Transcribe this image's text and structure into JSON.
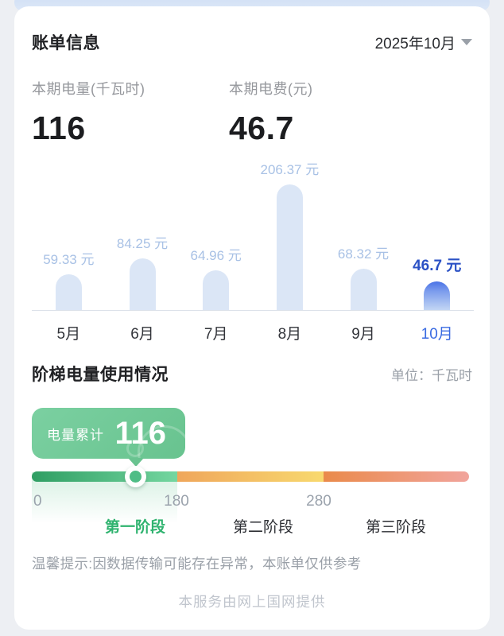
{
  "bill": {
    "title": "账单信息",
    "period": "2025年10月",
    "stats": [
      {
        "label": "本期电量(千瓦时)",
        "value": "116"
      },
      {
        "label": "本期电费(元)",
        "value": "46.7"
      }
    ]
  },
  "chart_data": {
    "type": "bar",
    "categories": [
      "5月",
      "6月",
      "7月",
      "8月",
      "9月",
      "10月"
    ],
    "values": [
      59.33,
      84.25,
      64.96,
      206.37,
      68.32,
      46.7
    ],
    "value_labels": [
      "59.33 元",
      "84.25 元",
      "64.96 元",
      "206.37 元",
      "68.32 元",
      "46.7 元"
    ],
    "unit": "元",
    "highlight_index": 5,
    "ylim": [
      0,
      206.37
    ],
    "grid": false,
    "legend": false
  },
  "tier": {
    "title": "阶梯电量使用情况",
    "unit_label": "单位：千瓦时",
    "badge_label": "电量累计",
    "badge_value": "116",
    "ticks": [
      "0",
      "180",
      "280"
    ],
    "stages": [
      "第一阶段",
      "第二阶段",
      "第三阶段"
    ],
    "current_kwh": 116
  },
  "footer": {
    "tip": "温馨提示:因数据传输可能存在异常，本账单仅供参考",
    "provider": "本服务由网上国网提供"
  },
  "icons": {
    "dropdown_arrow": "triangle-down"
  },
  "colors": {
    "page_bg": "#edeff3",
    "card_bg": "#ffffff",
    "bar_fill": "#dbe6f6",
    "bar_label": "#a8c1e5",
    "highlight_bar_top": "#4a73e6",
    "highlight_label": "#2b51c5",
    "active_month": "#3a6be2",
    "badge_green": "#6fc795",
    "stage1_green": "#2fb36f",
    "segment2_yellow": "#f8d96f",
    "segment3_red": "#f1a49c"
  }
}
